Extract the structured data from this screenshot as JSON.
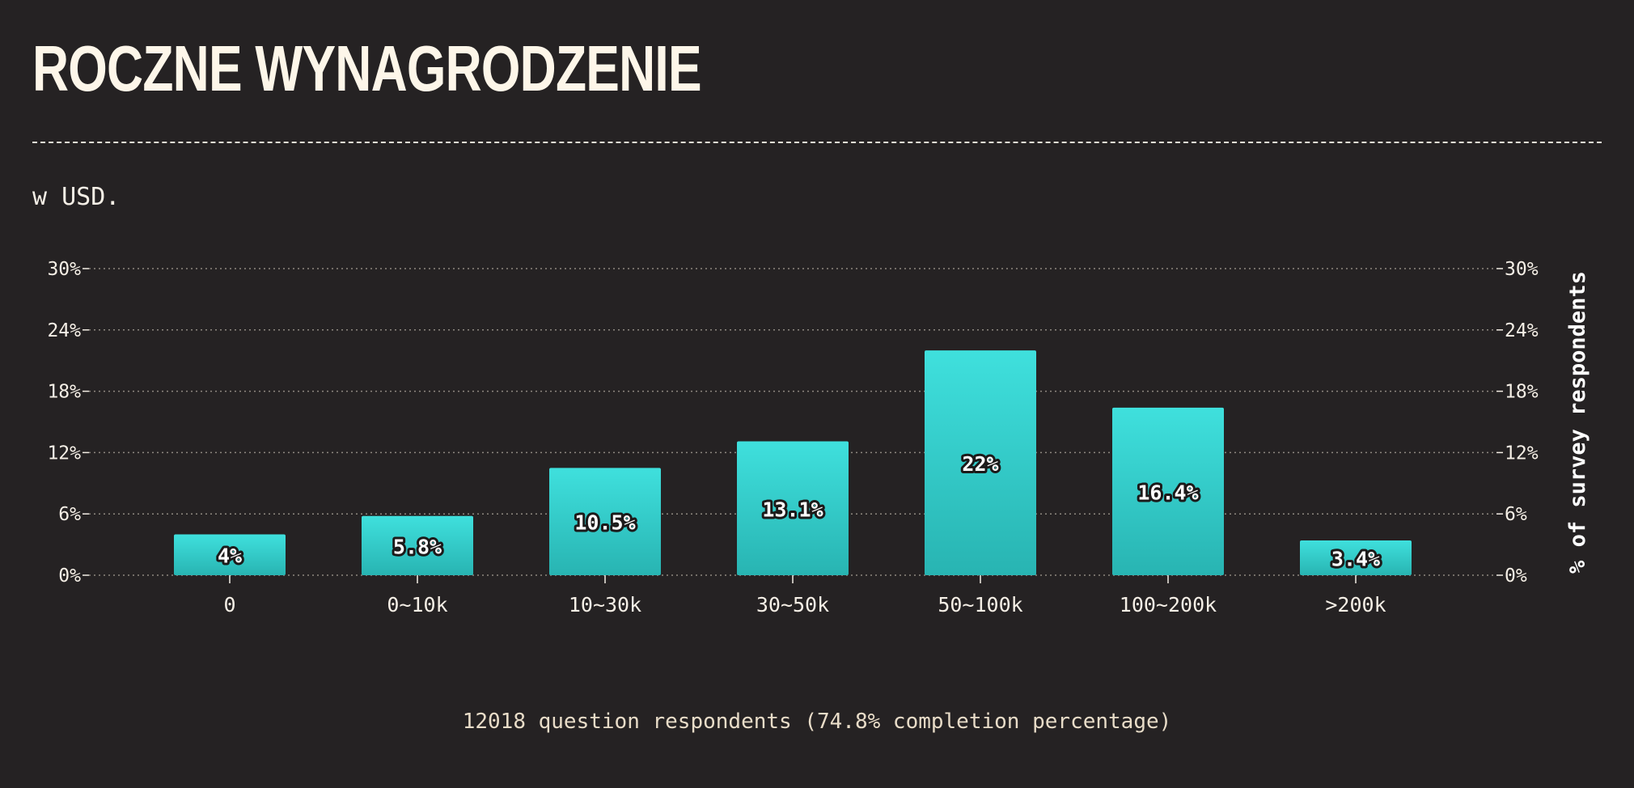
{
  "header": {
    "title": "ROCZNE WYNAGRODZENIE",
    "subtitle": "w USD."
  },
  "footer": {
    "note": "12018 question respondents (74.8% completion percentage)"
  },
  "colors": {
    "background": "#252223",
    "bar_top": "#3fe0dd",
    "bar_bottom": "#28b4b2",
    "text": "#f5efe6",
    "grid": "#8e8880"
  },
  "chart_data": {
    "type": "bar",
    "categories": [
      "0",
      "0~10k",
      "10~30k",
      "30~50k",
      "50~100k",
      "100~200k",
      ">200k"
    ],
    "values": [
      4,
      5.8,
      10.5,
      13.1,
      22,
      16.4,
      3.4
    ],
    "data_labels": [
      "4%",
      "5.8%",
      "10.5%",
      "13.1%",
      "22%",
      "16.4%",
      "3.4%"
    ],
    "y_ticks": [
      "0%",
      "6%",
      "12%",
      "18%",
      "24%",
      "30%"
    ],
    "ylim": [
      0,
      30
    ],
    "ylabel_right": "% of survey respondents",
    "grid": "horizontal-dotted",
    "axes": "left and right"
  }
}
